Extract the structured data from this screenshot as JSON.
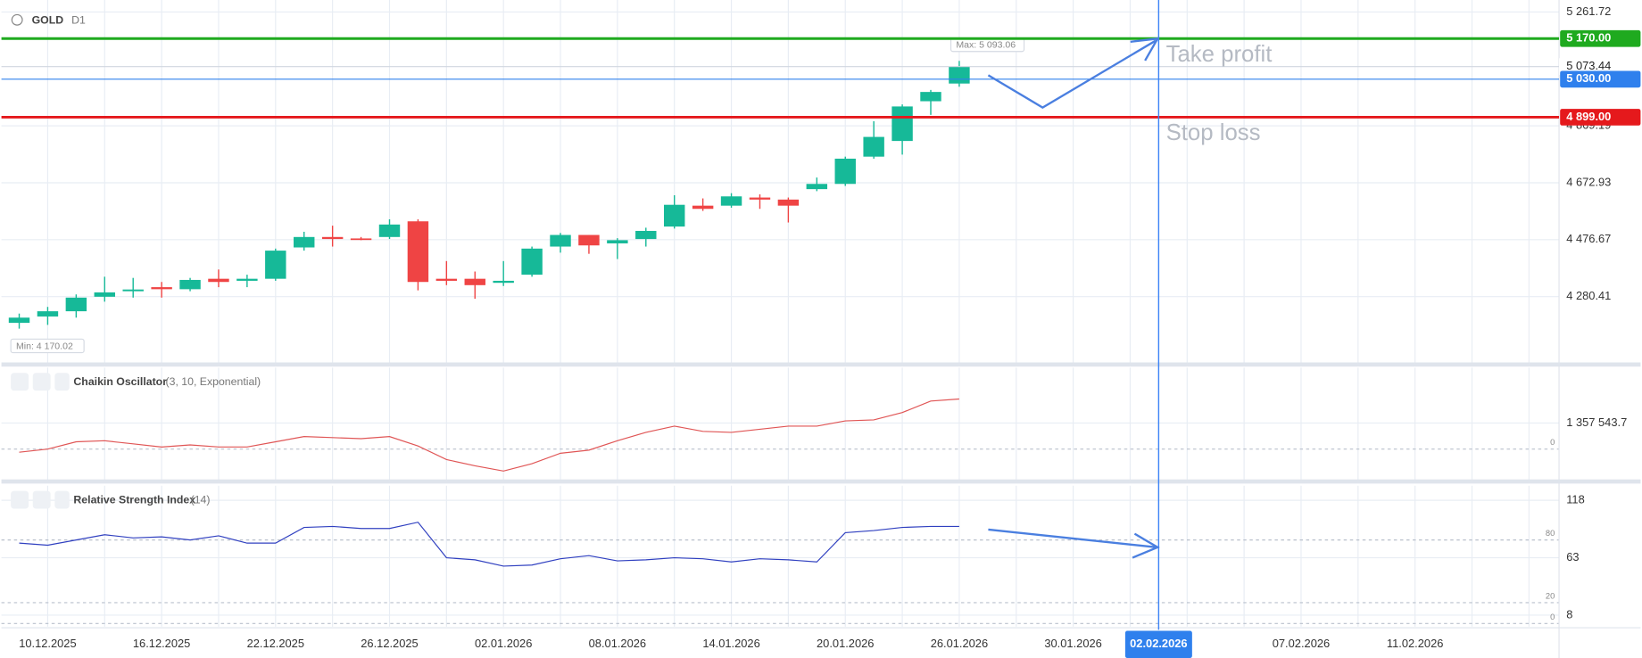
{
  "chart_data": [
    {
      "type": "candlestick",
      "title": "GOLD",
      "subtitle": "D1",
      "categories": [
        null,
        "10.12.2025",
        null,
        null,
        null,
        "16.12.2025",
        null,
        null,
        null,
        "22.12.2025",
        null,
        null,
        null,
        "26.12.2025",
        null,
        null,
        null,
        "02.01.2026",
        null,
        null,
        null,
        "08.01.2026",
        null,
        null,
        null,
        "14.01.2026",
        null,
        null,
        null,
        "20.01.2026",
        null,
        null,
        null,
        "26.01.2026",
        null,
        null,
        null,
        "30.01.2026",
        null,
        null,
        "02.02.2026",
        null,
        null,
        null,
        null,
        "07.02.2026",
        null,
        null,
        null,
        "11.02.2026",
        null,
        null,
        null,
        null
      ],
      "open": [
        4190,
        4212,
        4230,
        4280,
        4299,
        4313,
        4306,
        4342,
        4335,
        4342,
        4450,
        4486,
        4481,
        4486,
        4540,
        4342,
        4342,
        4328,
        4356,
        4453,
        4493,
        4464,
        4479,
        4522,
        4594,
        4594,
        4622,
        4615,
        4651,
        4669,
        4763,
        4817,
        4954,
        5015,
        null,
        null,
        null,
        null,
        null,
        null,
        null,
        null,
        null,
        null,
        null,
        null,
        null,
        null,
        null,
        null,
        null,
        null,
        null,
        null
      ],
      "high": [
        4222,
        4245,
        4288,
        4349,
        4345,
        4331,
        4345,
        4374,
        4356,
        4446,
        4504,
        4525,
        4486,
        4547,
        4547,
        4403,
        4367,
        4403,
        4453,
        4500,
        4493,
        4482,
        4518,
        4630,
        4619,
        4637,
        4633,
        4622,
        4691,
        4763,
        4885,
        4943,
        4993,
        5093.06,
        null,
        null,
        null,
        null,
        null,
        null,
        null,
        null,
        null,
        null,
        null,
        null,
        null,
        null,
        null,
        null,
        null,
        null,
        null,
        null
      ],
      "low": [
        4170.02,
        4183,
        4208,
        4263,
        4277,
        4277,
        4299,
        4313,
        4313,
        4335,
        4439,
        4453,
        4475,
        4479,
        4302,
        4320,
        4273,
        4317,
        4349,
        4432,
        4428,
        4410,
        4453,
        4515,
        4576,
        4587,
        4583,
        4536,
        4644,
        4662,
        4756,
        4770,
        4907,
        5004,
        null,
        null,
        null,
        null,
        null,
        null,
        null,
        null,
        null,
        null,
        null,
        null,
        null,
        null,
        null,
        null,
        null,
        null,
        null,
        null
      ],
      "close": [
        4208,
        4230,
        4277,
        4295,
        4305,
        4306,
        4338,
        4331,
        4342,
        4439,
        4486,
        4479,
        4479,
        4529,
        4331,
        4335,
        4320,
        4335,
        4446,
        4493,
        4457,
        4475,
        4507,
        4597,
        4583,
        4626,
        4615,
        4594,
        4669,
        4756,
        4831,
        4936,
        4986,
        5073.44,
        null,
        null,
        null,
        null,
        null,
        null,
        null,
        null,
        null,
        null,
        null,
        null,
        null,
        null,
        null,
        null,
        null,
        null,
        null,
        null
      ],
      "up_color": "#16b998",
      "down_color": "#ef4444",
      "ylim": [
        4050,
        5303
      ],
      "yticks": [
        {
          "value": 4280.41,
          "label": "4 280.41"
        },
        {
          "value": 4476.67,
          "label": "4 476.67"
        },
        {
          "value": 4672.93,
          "label": "4 672.93"
        },
        {
          "value": 4869.19,
          "label": "4 869.19"
        },
        {
          "value": 5261.72,
          "label": "5 261.72"
        }
      ],
      "grid": true,
      "levels": [
        {
          "value": 5170,
          "label": "5 170.00",
          "color": "#1faa1f"
        },
        {
          "value": 5030,
          "label": "5 030.00",
          "color": "#2f80ed"
        },
        {
          "value": 4899,
          "label": "4 899.00",
          "color": "#e5191c"
        }
      ],
      "last_price": {
        "value": 5073.44,
        "label": "5 073.44"
      },
      "max_label": "Max: 5 093.06",
      "min_label": "Min: 4 170.02",
      "annotations": [
        "Take profit",
        "Stop loss"
      ],
      "marker_date": "02.02.2026"
    },
    {
      "type": "line",
      "title": "Chaikin Oscillator",
      "subtitle": "(3, 10, Exponential)",
      "color": "#e05555",
      "values": [
        -163000,
        0,
        380000,
        434000,
        272000,
        109000,
        217000,
        109000,
        109000,
        380000,
        652000,
        597000,
        543000,
        652000,
        163000,
        -543000,
        -869000,
        -1140000,
        -760000,
        -217000,
        -54000,
        434000,
        869000,
        1195000,
        923000,
        869000,
        1032000,
        1195000,
        1195000,
        1466000,
        1520000,
        1901000,
        2498000,
        2606000,
        null,
        null,
        null,
        null,
        null,
        null,
        null,
        null,
        null,
        null,
        null,
        null,
        null,
        null,
        null,
        null,
        null,
        null,
        null,
        null
      ],
      "ylim": [
        -1630000,
        4236000
      ],
      "yticks": [
        {
          "value": 1357543.7,
          "label": "1 357 543.7"
        }
      ],
      "levels": [
        0
      ],
      "grid": true
    },
    {
      "type": "line",
      "title": "Relative Strength Index",
      "subtitle": "(14)",
      "color": "#3040c0",
      "values": [
        77,
        75,
        80,
        85,
        82,
        83,
        80,
        84,
        77,
        77,
        92,
        93,
        91,
        91,
        97,
        63,
        61,
        55,
        56,
        62,
        65,
        60,
        61,
        63,
        62,
        59,
        62,
        61,
        59,
        87,
        89,
        92,
        93,
        93,
        null,
        null,
        null,
        null,
        null,
        null,
        null,
        null,
        null,
        null,
        null,
        null,
        null,
        null,
        null,
        null,
        null,
        null,
        null,
        null
      ],
      "ylim": [
        -3,
        132
      ],
      "yticks": [
        8,
        63,
        118
      ],
      "levels": [
        80,
        20,
        0
      ],
      "grid": true
    }
  ]
}
